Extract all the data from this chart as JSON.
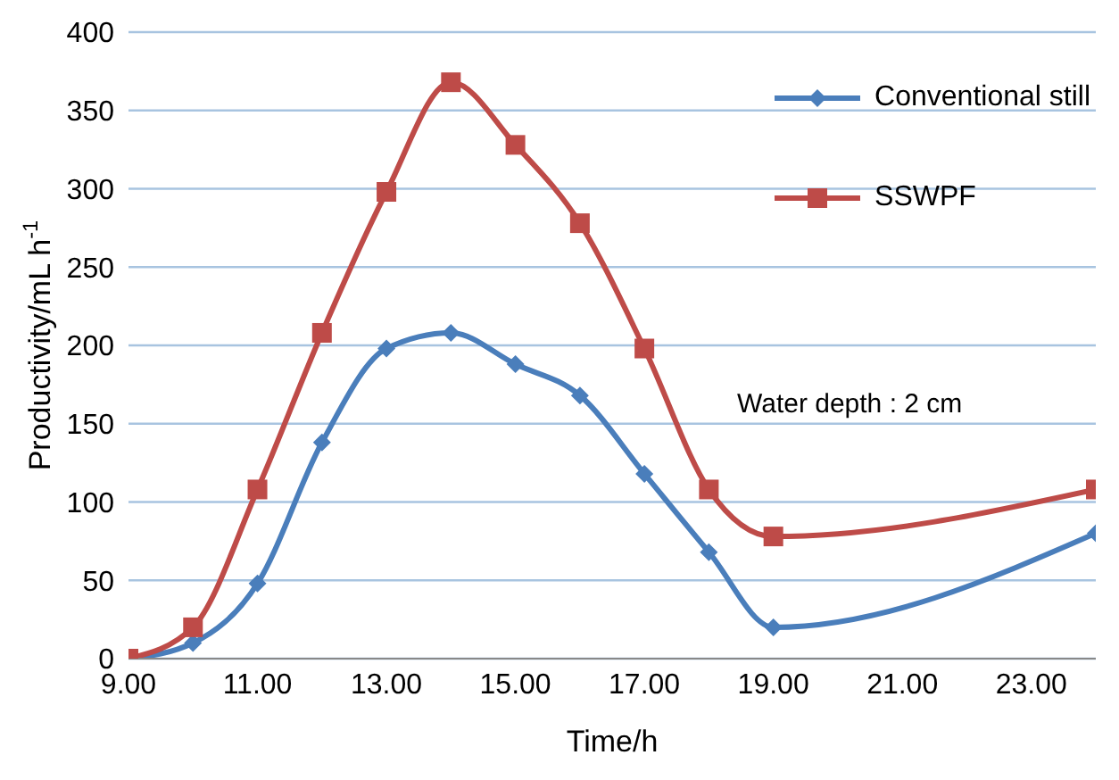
{
  "chart_data": {
    "type": "line",
    "xlabel": "Time/h",
    "ylabel": "Productivity/mL h$^{-1}$",
    "x": [
      9,
      10,
      11,
      12,
      13,
      14,
      15,
      16,
      17,
      18,
      19,
      24
    ],
    "series": [
      {
        "name": "Conventional still",
        "color": "#4a7ebb",
        "marker": "diamond",
        "values": [
          0,
          10,
          48,
          138,
          198,
          208,
          188,
          168,
          118,
          68,
          20,
          80
        ]
      },
      {
        "name": "SSWPF",
        "color": "#be4b48",
        "marker": "square",
        "values": [
          0,
          20,
          108,
          208,
          298,
          368,
          328,
          278,
          198,
          108,
          78,
          108
        ]
      }
    ],
    "xlim": [
      9,
      24
    ],
    "xticks": [
      {
        "value": 9,
        "label": "9.00"
      },
      {
        "value": 11,
        "label": "11.00"
      },
      {
        "value": 13,
        "label": "13.00"
      },
      {
        "value": 15,
        "label": "15.00"
      },
      {
        "value": 17,
        "label": "17.00"
      },
      {
        "value": 19,
        "label": "19.00"
      },
      {
        "value": 21,
        "label": "21.00"
      },
      {
        "value": 23,
        "label": "23.00"
      }
    ],
    "ylim": [
      0,
      400
    ],
    "yticks": [
      0,
      50,
      100,
      150,
      200,
      250,
      300,
      350,
      400
    ],
    "grid": "y",
    "legend": "top right",
    "line_style": "solid",
    "annotations": [
      "Water depth : 2 cm"
    ]
  }
}
